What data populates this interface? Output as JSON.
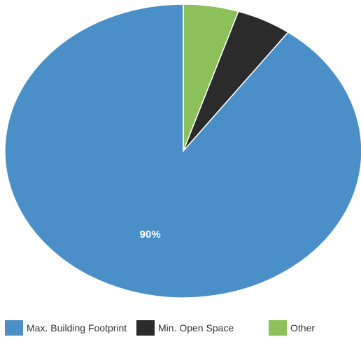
{
  "chart_data": {
    "type": "pie",
    "categories": [
      "Max. Building Footprint",
      "Min. Open Space",
      "Other"
    ],
    "values": [
      90,
      5,
      5
    ],
    "data_labels": [
      "90%",
      "",
      ""
    ],
    "colors": [
      "#4a8fc7",
      "#2b2b2b",
      "#8bc05a"
    ],
    "legend_position": "bottom",
    "start_angle": "top",
    "direction": "counterclockwise-from-other"
  },
  "legend": {
    "items": [
      {
        "label": "Max. Building Footprint",
        "color": "#4a8fc7"
      },
      {
        "label": "Min. Open Space",
        "color": "#2b2b2b"
      },
      {
        "label": "Other",
        "color": "#8bc05a"
      }
    ]
  }
}
